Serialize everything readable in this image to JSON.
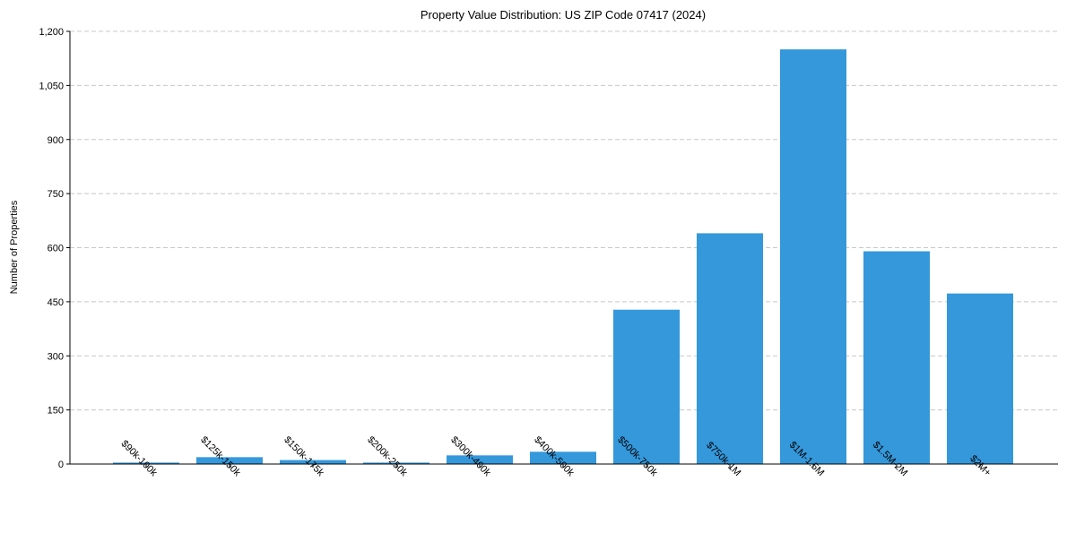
{
  "chart_data": {
    "type": "bar",
    "title": "Property Value Distribution: US ZIP Code 07417 (2024)",
    "xlabel": "",
    "ylabel": "Number of Properties",
    "categories": [
      "$90k-100k",
      "$125k-150k",
      "$150k-175k",
      "$200k-250k",
      "$300k-400k",
      "$400k-500k",
      "$500k-750k",
      "$750k-1M",
      "$1M-1.5M",
      "$1.5M-2M",
      "$2M+"
    ],
    "values": [
      4,
      19,
      11,
      4,
      24,
      34,
      428,
      640,
      1150,
      590,
      473
    ],
    "ylim": [
      0,
      1200
    ],
    "yticks": [
      0,
      150,
      300,
      450,
      600,
      750,
      900,
      1050,
      1200
    ],
    "ytick_labels": [
      "0",
      "150",
      "300",
      "450",
      "600",
      "750",
      "900",
      "1,050",
      "1,200"
    ],
    "grid": "y-dashed",
    "bar_color": "#3498db"
  }
}
